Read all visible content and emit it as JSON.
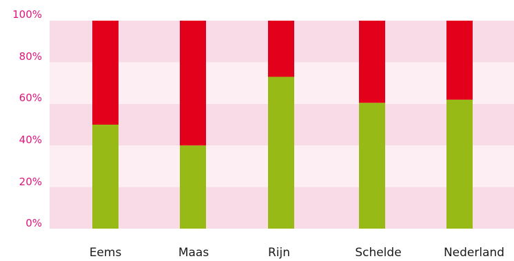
{
  "chart_data": {
    "type": "bar",
    "stacked": true,
    "categories": [
      "Eems",
      "Maas",
      "Rijn",
      "Schelde",
      "Nederland"
    ],
    "series": [
      {
        "values": [
          50,
          40,
          73,
          60.5,
          62
        ],
        "color": "#97ba17"
      },
      {
        "values": [
          50,
          60,
          27,
          39.5,
          38
        ],
        "color": "#e3001b"
      }
    ],
    "y_ticks": [
      "0%",
      "20%",
      "40%",
      "60%",
      "80%",
      "100%"
    ],
    "ylim": [
      0,
      100
    ],
    "title": "",
    "xlabel": "",
    "ylabel": "",
    "grid": "alternating bands",
    "band_colors": [
      "#f9dbe7",
      "#fdeef4"
    ],
    "tick_label_color": "#e0147a"
  }
}
